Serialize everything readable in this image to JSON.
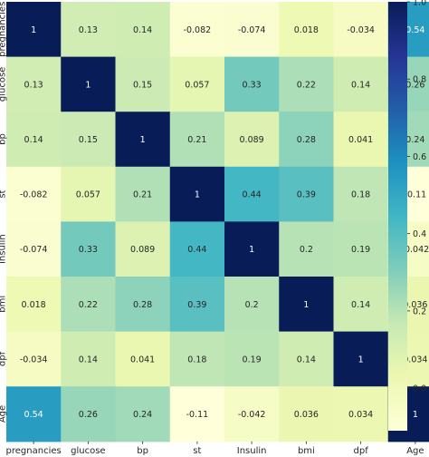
{
  "chart_data": {
    "type": "heatmap",
    "title": "",
    "xlabel": "",
    "ylabel": "",
    "x_categories": [
      "pregnancies",
      "glucose",
      "bp",
      "st",
      "Insulin",
      "bmi",
      "dpf",
      "Age"
    ],
    "y_categories": [
      "pregnancies",
      "glucose",
      "bp",
      "st",
      "Insulin",
      "bmi",
      "dpf",
      "Age"
    ],
    "values": [
      [
        1,
        0.13,
        0.14,
        -0.082,
        -0.074,
        0.018,
        -0.034,
        0.54
      ],
      [
        0.13,
        1,
        0.15,
        0.057,
        0.33,
        0.22,
        0.14,
        0.26
      ],
      [
        0.14,
        0.15,
        1,
        0.21,
        0.089,
        0.28,
        0.041,
        0.24
      ],
      [
        -0.082,
        0.057,
        0.21,
        1,
        0.44,
        0.39,
        0.18,
        -0.11
      ],
      [
        -0.074,
        0.33,
        0.089,
        0.44,
        1,
        0.2,
        0.19,
        -0.042
      ],
      [
        0.018,
        0.22,
        0.28,
        0.39,
        0.2,
        1,
        0.14,
        0.036
      ],
      [
        -0.034,
        0.14,
        0.041,
        0.18,
        0.19,
        0.14,
        1,
        0.034
      ],
      [
        0.54,
        0.26,
        0.24,
        -0.11,
        -0.042,
        0.036,
        0.034,
        1
      ]
    ],
    "cell_labels": [
      [
        "1",
        "0.13",
        "0.14",
        "-0.082",
        "-0.074",
        "0.018",
        "-0.034",
        "0.54"
      ],
      [
        "0.13",
        "1",
        "0.15",
        "0.057",
        "0.33",
        "0.22",
        "0.14",
        "0.26"
      ],
      [
        "0.14",
        "0.15",
        "1",
        "0.21",
        "0.089",
        "0.28",
        "0.041",
        "0.24"
      ],
      [
        "-0.082",
        "0.057",
        "0.21",
        "1",
        "0.44",
        "0.39",
        "0.18",
        "-0.11"
      ],
      [
        "-0.074",
        "0.33",
        "0.089",
        "0.44",
        "1",
        "0.2",
        "0.19",
        "-0.042"
      ],
      [
        "0.018",
        "0.22",
        "0.28",
        "0.39",
        "0.2",
        "1",
        "0.14",
        "0.036"
      ],
      [
        "-0.034",
        "0.14",
        "0.041",
        "0.18",
        "0.19",
        "0.14",
        "1",
        "0.034"
      ],
      [
        "0.54",
        "0.26",
        "0.24",
        "-0.11",
        "-0.042",
        "0.036",
        "0.034",
        "1"
      ]
    ],
    "colorbar": {
      "range": [
        -0.11,
        1
      ],
      "ticks": [
        0.0,
        0.2,
        0.4,
        0.6,
        0.8,
        1.0
      ],
      "tick_labels": [
        "0.0",
        "0.2",
        "0.4",
        "0.6",
        "0.8",
        "1.0"
      ],
      "colormap": "YlGnBu",
      "colors": [
        "#ffffd9",
        "#edf8b1",
        "#c7e9b4",
        "#7fcdbb",
        "#41b6c4",
        "#1d91c0",
        "#225ea8",
        "#253494",
        "#081d58"
      ]
    },
    "grid": false,
    "cell_text_color_light": "#ffffff",
    "cell_text_color_dark": "#262626"
  }
}
